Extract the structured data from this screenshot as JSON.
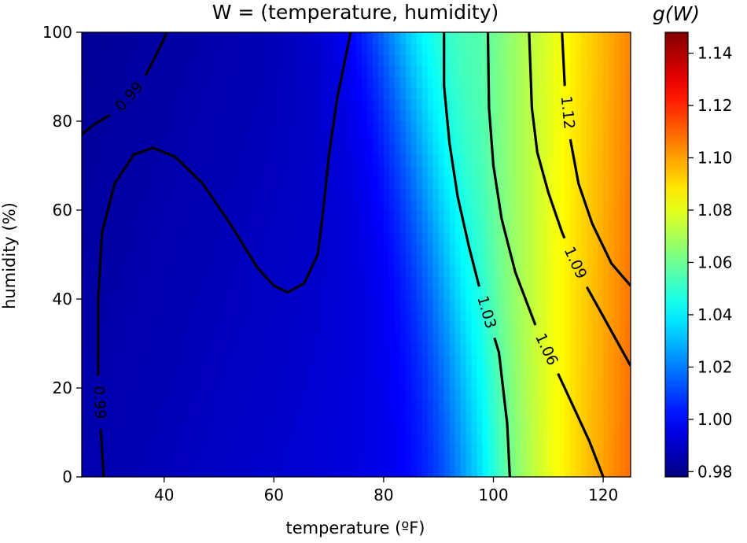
{
  "chart_data": {
    "type": "heatmap",
    "title": "W = (temperature, humidity)",
    "xlabel": "temperature (ºF)",
    "ylabel": "humidity (%)",
    "xlim": [
      25,
      125
    ],
    "ylim": [
      0,
      100
    ],
    "x_ticks": [
      40,
      60,
      80,
      100,
      120
    ],
    "y_ticks": [
      0,
      20,
      40,
      60,
      80,
      100
    ],
    "colorbar": {
      "label": "g(W)",
      "range": [
        0.978,
        1.148
      ],
      "ticks": [
        0.98,
        1.0,
        1.02,
        1.04,
        1.06,
        1.08,
        1.1,
        1.12,
        1.14
      ],
      "tick_labels": [
        "0.98",
        "1.00",
        "1.02",
        "1.04",
        "1.06",
        "1.08",
        "1.10",
        "1.12",
        "1.14"
      ],
      "colormap": "jet"
    },
    "contours": [
      {
        "level": 0.99,
        "label": "0.99",
        "points": [
          [
            25,
            77
          ],
          [
            27.5,
            79.5
          ],
          [
            31,
            82
          ],
          [
            34,
            86
          ],
          [
            36.5,
            90
          ],
          [
            39,
            96
          ],
          [
            40.5,
            100
          ]
        ]
      },
      {
        "level": 0.99,
        "label": "0.99",
        "points": [
          [
            29,
            0
          ],
          [
            28.5,
            10
          ],
          [
            28,
            22
          ],
          [
            28,
            40
          ],
          [
            28.7,
            55
          ],
          [
            31,
            66
          ],
          [
            34.5,
            72.5
          ],
          [
            38,
            74
          ],
          [
            42,
            72
          ],
          [
            47,
            66
          ],
          [
            52,
            57
          ],
          [
            57,
            47
          ],
          [
            60,
            43
          ],
          [
            62.5,
            41.5
          ],
          [
            65.5,
            43.5
          ],
          [
            68,
            50
          ],
          [
            69,
            60
          ],
          [
            70,
            72
          ],
          [
            71.5,
            85
          ],
          [
            74,
            100
          ]
        ]
      },
      {
        "level": 1.03,
        "label": "1.03",
        "points": [
          [
            103,
            0
          ],
          [
            102.5,
            12
          ],
          [
            101,
            28
          ],
          [
            98,
            40
          ],
          [
            95.5,
            52
          ],
          [
            93.5,
            63
          ],
          [
            92,
            75
          ],
          [
            91,
            88
          ],
          [
            91,
            100
          ]
        ]
      },
      {
        "level": 1.06,
        "label": "1.06",
        "points": [
          [
            120,
            0
          ],
          [
            117.5,
            8
          ],
          [
            113,
            20
          ],
          [
            108,
            33
          ],
          [
            104,
            46
          ],
          [
            101.5,
            58
          ],
          [
            100,
            70
          ],
          [
            99.2,
            83
          ],
          [
            99,
            100
          ]
        ]
      },
      {
        "level": 1.09,
        "label": "1.09",
        "points": [
          [
            125,
            25
          ],
          [
            120.5,
            35
          ],
          [
            116,
            45
          ],
          [
            112.5,
            55
          ],
          [
            110,
            64
          ],
          [
            108,
            73
          ],
          [
            107,
            83
          ],
          [
            106.5,
            100
          ]
        ]
      },
      {
        "level": 1.12,
        "label": "1.12",
        "points": [
          [
            125,
            43
          ],
          [
            121.5,
            48
          ],
          [
            118,
            57
          ],
          [
            115.5,
            66
          ],
          [
            114,
            76
          ],
          [
            113,
            88
          ],
          [
            112.5,
            100
          ]
        ]
      }
    ]
  }
}
